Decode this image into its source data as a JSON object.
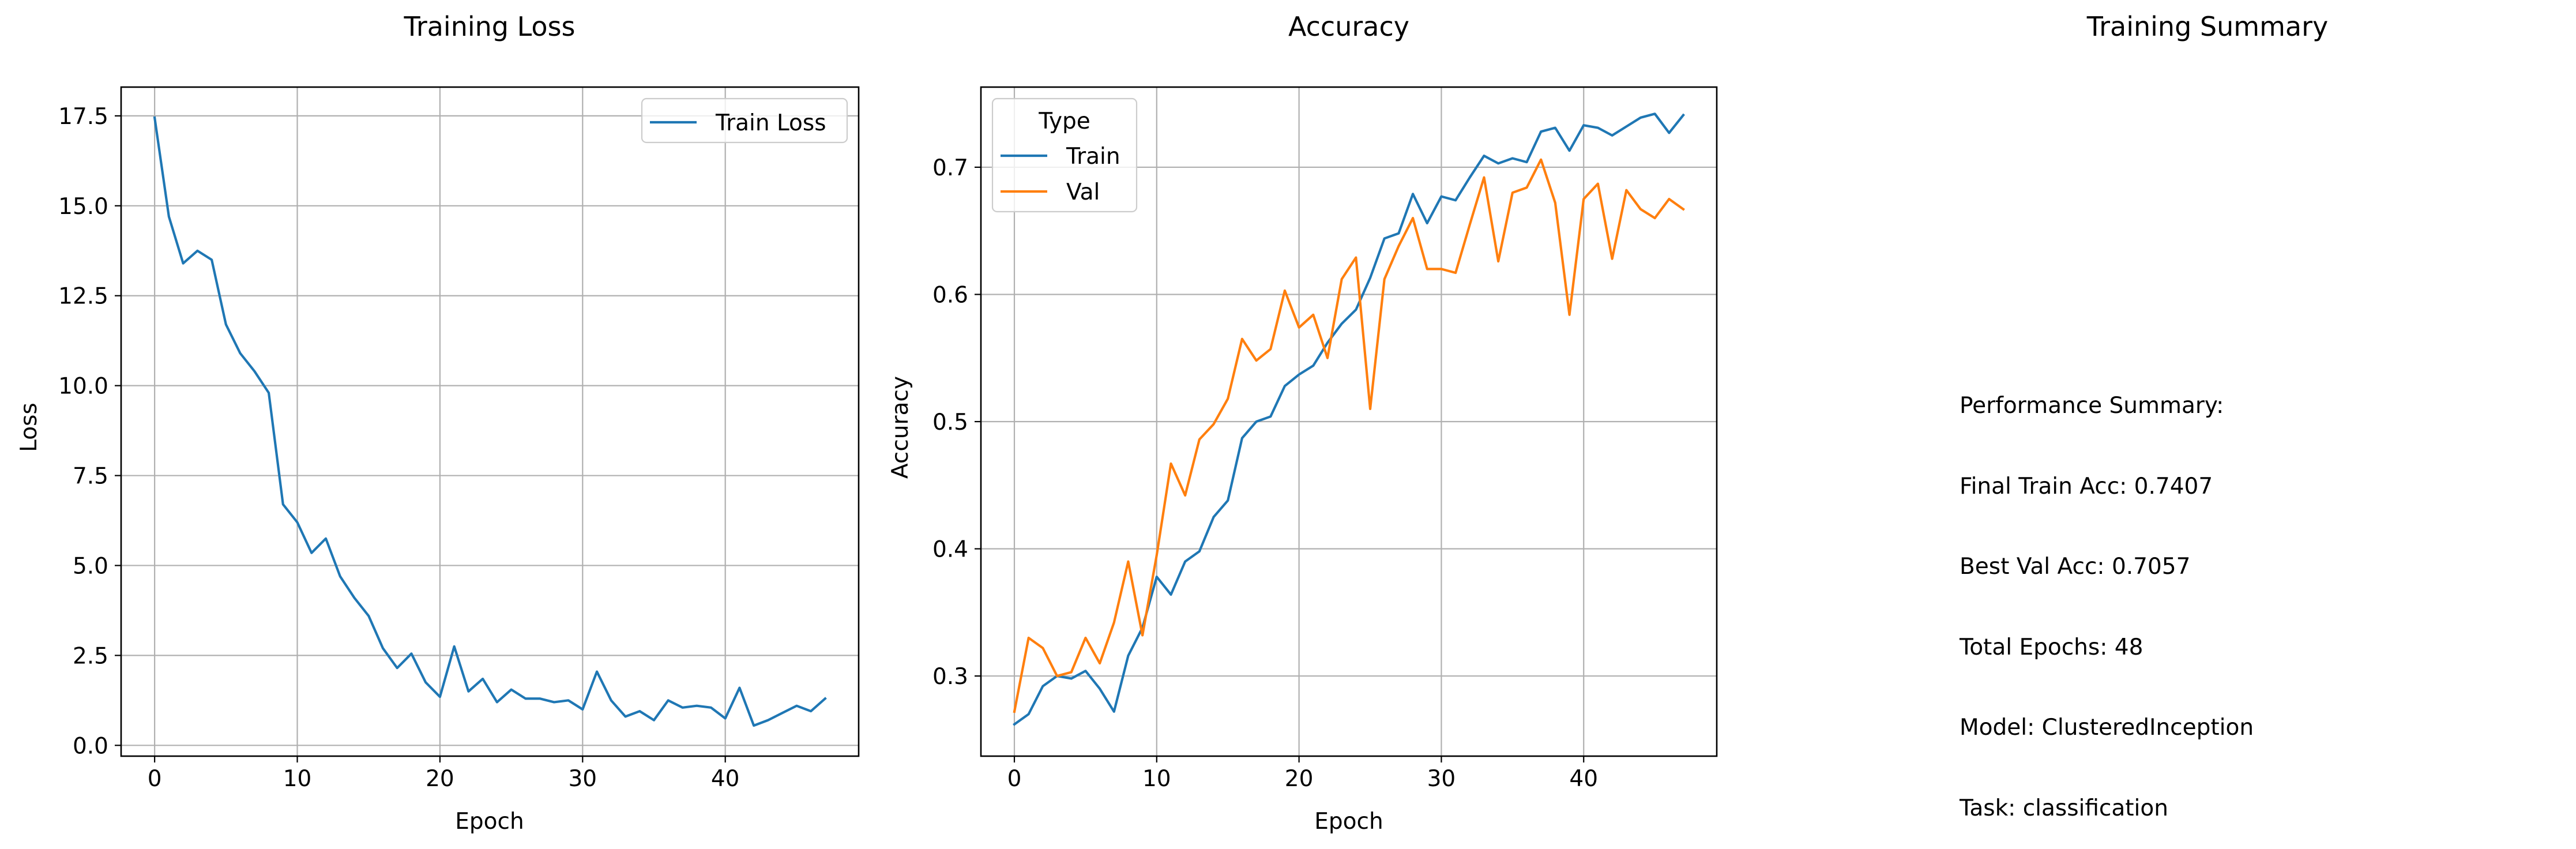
{
  "summary": {
    "title": "Training Summary",
    "heading": "Performance Summary:",
    "lines": [
      "Final Train Acc: 0.7407",
      "Best Val Acc: 0.7057",
      "Total Epochs: 48",
      "Model: ClusteredInception",
      "Task: classification"
    ]
  },
  "colors": {
    "train": "#1f77b4",
    "val": "#ff7f0e",
    "grid": "#b0b0b0"
  },
  "chart_data": [
    {
      "type": "line",
      "title": "Training Loss",
      "xlabel": "Epoch",
      "ylabel": "Loss",
      "xlim": [
        -2.35,
        49.35
      ],
      "ylim": [
        -0.3,
        18.3
      ],
      "xticks": [
        0,
        10,
        20,
        30,
        40
      ],
      "yticks": [
        0.0,
        2.5,
        5.0,
        7.5,
        10.0,
        12.5,
        15.0,
        17.5
      ],
      "grid": true,
      "legend": {
        "placement": "top-right"
      },
      "series": [
        {
          "name": "Train Loss",
          "color": "#1f77b4",
          "x": [
            0,
            1,
            2,
            3,
            4,
            5,
            6,
            7,
            8,
            9,
            10,
            11,
            12,
            13,
            14,
            15,
            16,
            17,
            18,
            19,
            20,
            21,
            22,
            23,
            24,
            25,
            26,
            27,
            28,
            29,
            30,
            31,
            32,
            33,
            34,
            35,
            36,
            37,
            38,
            39,
            40,
            41,
            42,
            43,
            44,
            45,
            46,
            47
          ],
          "values": [
            17.45,
            14.7,
            13.4,
            13.75,
            13.5,
            11.7,
            10.9,
            10.4,
            9.8,
            6.7,
            6.2,
            5.35,
            5.75,
            4.7,
            4.1,
            3.6,
            2.7,
            2.15,
            2.55,
            1.75,
            1.35,
            2.75,
            1.5,
            1.85,
            1.2,
            1.55,
            1.3,
            1.3,
            1.2,
            1.25,
            1.0,
            2.05,
            1.25,
            0.8,
            0.95,
            0.7,
            1.25,
            1.05,
            1.1,
            1.05,
            0.75,
            1.6,
            0.55,
            0.7,
            0.9,
            1.1,
            0.95,
            1.3
          ]
        }
      ]
    },
    {
      "type": "line",
      "title": "Accuracy",
      "xlabel": "Epoch",
      "ylabel": "Accuracy",
      "xlim": [
        -2.35,
        49.35
      ],
      "ylim": [
        0.237,
        0.763
      ],
      "xticks": [
        0,
        10,
        20,
        30,
        40
      ],
      "yticks": [
        0.3,
        0.4,
        0.5,
        0.6,
        0.7
      ],
      "grid": true,
      "legend": {
        "placement": "top-left",
        "title": "Type"
      },
      "series": [
        {
          "name": "Train",
          "color": "#1f77b4",
          "x": [
            0,
            1,
            2,
            3,
            4,
            5,
            6,
            7,
            8,
            9,
            10,
            11,
            12,
            13,
            14,
            15,
            16,
            17,
            18,
            19,
            20,
            21,
            22,
            23,
            24,
            25,
            26,
            27,
            28,
            29,
            30,
            31,
            32,
            33,
            34,
            35,
            36,
            37,
            38,
            39,
            40,
            41,
            42,
            43,
            44,
            45,
            46,
            47
          ],
          "values": [
            0.262,
            0.27,
            0.292,
            0.3,
            0.298,
            0.304,
            0.29,
            0.272,
            0.316,
            0.338,
            0.378,
            0.364,
            0.39,
            0.398,
            0.425,
            0.438,
            0.487,
            0.5,
            0.504,
            0.528,
            0.537,
            0.544,
            0.562,
            0.577,
            0.588,
            0.613,
            0.644,
            0.648,
            0.679,
            0.656,
            0.677,
            0.674,
            0.692,
            0.709,
            0.703,
            0.707,
            0.704,
            0.728,
            0.731,
            0.713,
            0.733,
            0.731,
            0.725,
            0.732,
            0.739,
            0.742,
            0.727,
            0.741
          ]
        },
        {
          "name": "Val",
          "color": "#ff7f0e",
          "x": [
            0,
            1,
            2,
            3,
            4,
            5,
            6,
            7,
            8,
            9,
            10,
            11,
            12,
            13,
            14,
            15,
            16,
            17,
            18,
            19,
            20,
            21,
            22,
            23,
            24,
            25,
            26,
            27,
            28,
            29,
            30,
            31,
            32,
            33,
            34,
            35,
            36,
            37,
            38,
            39,
            40,
            41,
            42,
            43,
            44,
            45,
            46,
            47
          ],
          "values": [
            0.272,
            0.33,
            0.322,
            0.3,
            0.303,
            0.33,
            0.31,
            0.342,
            0.39,
            0.332,
            0.395,
            0.467,
            0.442,
            0.486,
            0.498,
            0.518,
            0.565,
            0.548,
            0.557,
            0.603,
            0.574,
            0.584,
            0.55,
            0.612,
            0.629,
            0.51,
            0.612,
            0.638,
            0.66,
            0.62,
            0.62,
            0.617,
            0.655,
            0.692,
            0.626,
            0.68,
            0.684,
            0.706,
            0.672,
            0.584,
            0.675,
            0.687,
            0.628,
            0.682,
            0.667,
            0.66,
            0.675,
            0.667
          ]
        }
      ]
    }
  ]
}
